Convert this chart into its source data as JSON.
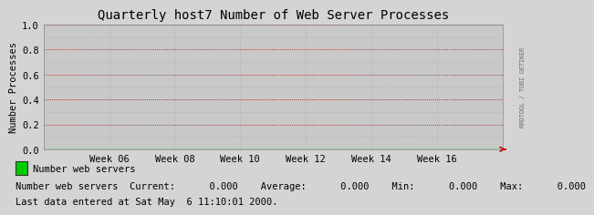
{
  "title": "Quarterly host7 Number of Web Server Processes",
  "ylabel": "Number Processes",
  "bg_color": "#d4d4d4",
  "plot_bg_color": "#c8c8c8",
  "grid_major_color": "#aa0000",
  "grid_minor_color": "#aaaaaa",
  "yticks": [
    0.0,
    0.2,
    0.4,
    0.6,
    0.8,
    1.0
  ],
  "xtick_labels": [
    "Week 06",
    "Week 08",
    "Week 10",
    "Week 12",
    "Week 14",
    "Week 16"
  ],
  "xlim": [
    0,
    1
  ],
  "ylim": [
    0.0,
    1.0
  ],
  "line_color": "#00cc00",
  "line_y": 0.0,
  "right_label": "RRDTOOL / TOBI OETIKER",
  "legend_label": "Number web servers",
  "legend_color": "#00cc00",
  "stats_line": "Number web servers  Current:      0.000    Average:      0.000    Min:      0.000    Max:      0.000",
  "last_data_line": "Last data entered at Sat May  6 11:10:01 2000.",
  "title_fontsize": 10,
  "axis_fontsize": 7.5,
  "tick_fontsize": 7.5,
  "stats_fontsize": 7.5,
  "arrow_color": "#cc0000",
  "right_label_color": "#666666"
}
